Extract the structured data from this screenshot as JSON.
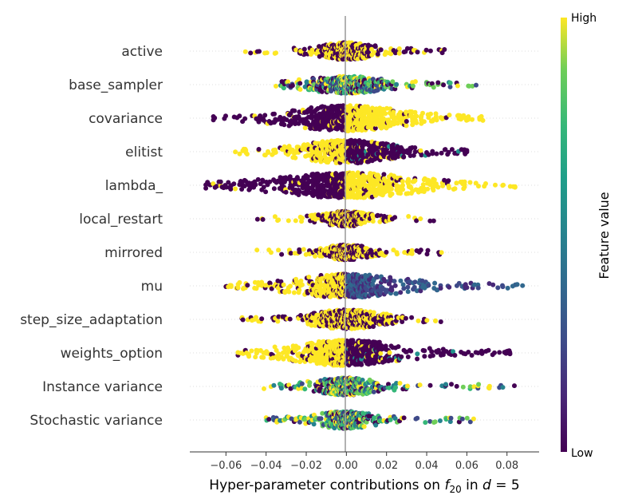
{
  "chart_data": {
    "type": "scatter",
    "subtype": "beeswarm",
    "xlabel_prefix": "Hyper-parameter contributions on ",
    "xlabel_func": "f",
    "xlabel_sub": "20",
    "xlabel_mid": " in ",
    "xlabel_d": "d",
    "xlabel_eq": " = 5",
    "xlim": [
      -0.078,
      0.096
    ],
    "xticks": [
      -0.06,
      -0.04,
      -0.02,
      0.0,
      0.02,
      0.04,
      0.06,
      0.08
    ],
    "xtick_labels": [
      "−0.06",
      "−0.04",
      "−0.02",
      "0.00",
      "0.02",
      "0.04",
      "0.06",
      "0.08"
    ],
    "colorbar": {
      "title": "Feature value",
      "high": "High",
      "low": "Low",
      "colormap": "viridis"
    },
    "colors": {
      "low": "#440154",
      "mid": "#21918c",
      "high": "#fde725",
      "zero_line": "#999999"
    },
    "features": [
      {
        "name": "active",
        "min": -0.052,
        "max": 0.052,
        "core": 0.005,
        "dist": "binary",
        "spread": 0.012,
        "density": 0.6
      },
      {
        "name": "base_sampler",
        "min": -0.038,
        "max": 0.068,
        "core": 0.008,
        "dist": "mixed",
        "spread": 0.018,
        "density": 0.6
      },
      {
        "name": "covariance",
        "min": -0.068,
        "max": 0.068,
        "core": 0.012,
        "dist": "split_low_left",
        "spread": 0.025,
        "density": 1.0
      },
      {
        "name": "elitist",
        "min": -0.058,
        "max": 0.06,
        "core": 0.01,
        "dist": "split_high_left",
        "spread": 0.02,
        "density": 0.9
      },
      {
        "name": "lambda_",
        "min": -0.07,
        "max": 0.084,
        "core": 0.015,
        "dist": "split_low_left",
        "spread": 0.03,
        "density": 1.0
      },
      {
        "name": "local_restart",
        "min": -0.045,
        "max": 0.045,
        "core": 0.004,
        "dist": "binary",
        "spread": 0.01,
        "density": 0.5
      },
      {
        "name": "mirrored",
        "min": -0.048,
        "max": 0.048,
        "core": 0.005,
        "dist": "binary",
        "spread": 0.01,
        "density": 0.5
      },
      {
        "name": "mu",
        "min": -0.06,
        "max": 0.088,
        "core": 0.008,
        "dist": "high_left",
        "spread": 0.025,
        "density": 0.9
      },
      {
        "name": "step_size_adaptation",
        "min": -0.058,
        "max": 0.058,
        "core": 0.008,
        "dist": "binary",
        "spread": 0.015,
        "density": 0.7
      },
      {
        "name": "weights_option",
        "min": -0.054,
        "max": 0.086,
        "core": 0.01,
        "dist": "split_high_left",
        "spread": 0.025,
        "density": 1.0
      },
      {
        "name": "Instance variance",
        "min": -0.045,
        "max": 0.085,
        "core": 0.005,
        "dist": "mixed",
        "spread": 0.015,
        "density": 0.6
      },
      {
        "name": "Stochastic variance",
        "min": -0.04,
        "max": 0.066,
        "core": 0.005,
        "dist": "mixed",
        "spread": 0.014,
        "density": 0.6
      }
    ]
  }
}
